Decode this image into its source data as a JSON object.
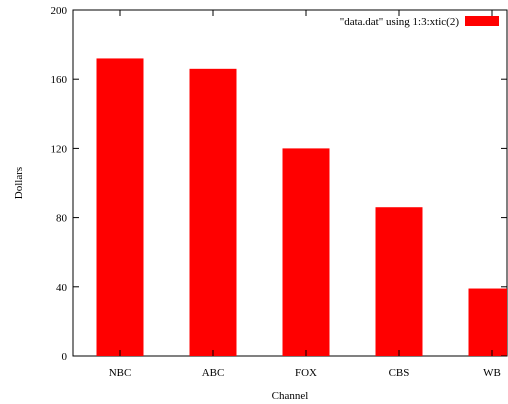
{
  "chart_data": {
    "type": "bar",
    "categories": [
      "NBC",
      "ABC",
      "FOX",
      "CBS",
      "WB"
    ],
    "series": [
      {
        "name": "\"data.dat\" using 1:3:xtic(2)",
        "values": [
          172,
          166,
          120,
          86,
          39
        ],
        "color": "#ff0000"
      }
    ],
    "xlabel": "Channel",
    "ylabel": "Dollars",
    "ylim": [
      0,
      200
    ],
    "yticks": [
      "0",
      "40",
      "80",
      "120",
      "160",
      "200"
    ],
    "grid": false,
    "legend_position": "top-right"
  }
}
